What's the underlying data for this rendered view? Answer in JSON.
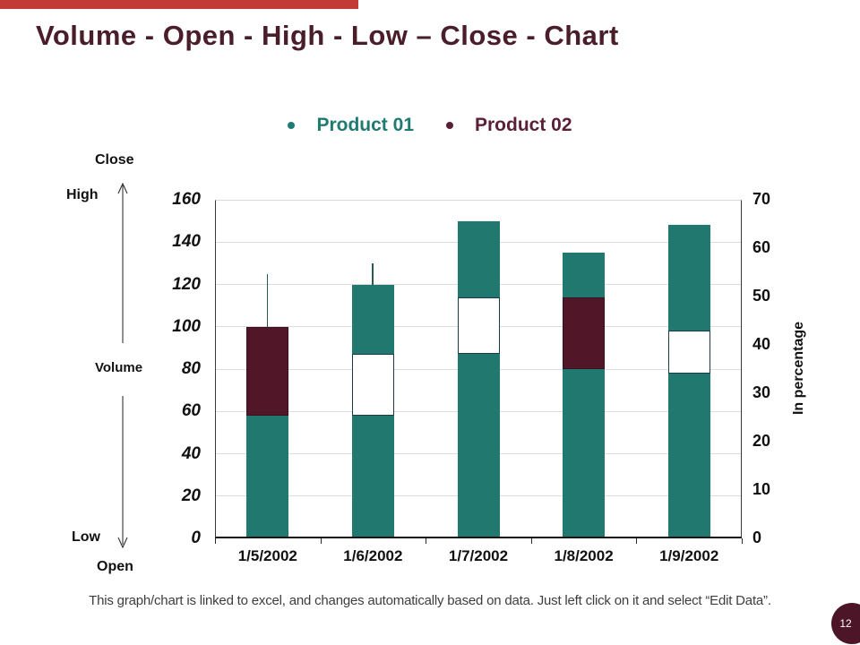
{
  "slide": {
    "title": "Volume - Open - High - Low – Close - Chart",
    "title_color": "#4A1D2B",
    "accent_bar_color": "#C23B35",
    "footer_note": "This graph/chart is linked to excel, and changes automatically based on data. Just left click on it and select “Edit Data”.",
    "page_number": "12",
    "badge_color": "#4C1528"
  },
  "legend": {
    "items": [
      {
        "label": "Product 01",
        "color": "#1F7A72"
      },
      {
        "label": "Product 02",
        "color": "#5A2038"
      }
    ]
  },
  "axis_annotations": {
    "close": "Close",
    "high": "High",
    "volume": "Volume",
    "low": "Low",
    "open": "Open"
  },
  "chart_data": {
    "type": "stock-vohlc",
    "title": "Volume - Open - High - Low – Close - Chart",
    "categories": [
      "1/5/2002",
      "1/6/2002",
      "1/7/2002",
      "1/8/2002",
      "1/9/2002"
    ],
    "left_axis": {
      "min": 0,
      "max": 160,
      "step": 20
    },
    "right_axis": {
      "min": 0,
      "max": 70,
      "step": 10,
      "label": "In percentage"
    },
    "grid": true,
    "legend_position": "top",
    "units_note": "all values read on the left axis scale (0-160)",
    "series": [
      {
        "name": "Product 01",
        "type": "column",
        "role": "volume",
        "color": "#20786E",
        "values": [
          100,
          120,
          150,
          135,
          148
        ]
      },
      {
        "name": "Product 02",
        "type": "candlestick",
        "role": "open-high-low-close",
        "color": "#511627",
        "candles": [
          {
            "x": "1/5/2002",
            "body_low": 58,
            "body_high": 100,
            "direction": "down",
            "wick_high": 125
          },
          {
            "x": "1/6/2002",
            "body_low": 58,
            "body_high": 87,
            "direction": "up",
            "wick_high": 130
          },
          {
            "x": "1/7/2002",
            "body_low": 87,
            "body_high": 114,
            "direction": "up",
            "wick_high": null
          },
          {
            "x": "1/8/2002",
            "body_low": 80,
            "body_high": 114,
            "direction": "down",
            "wick_high": null
          },
          {
            "x": "1/9/2002",
            "body_low": 78,
            "body_high": 98,
            "direction": "up",
            "wick_high": null
          }
        ]
      }
    ],
    "style": {
      "gridline_color": "#DCDCDC",
      "wick_color": "#2A5A55",
      "hollow_body_border": "#1C3A47",
      "filled_body_border": "#3A0F22",
      "axis_text_color": "#111111"
    }
  }
}
